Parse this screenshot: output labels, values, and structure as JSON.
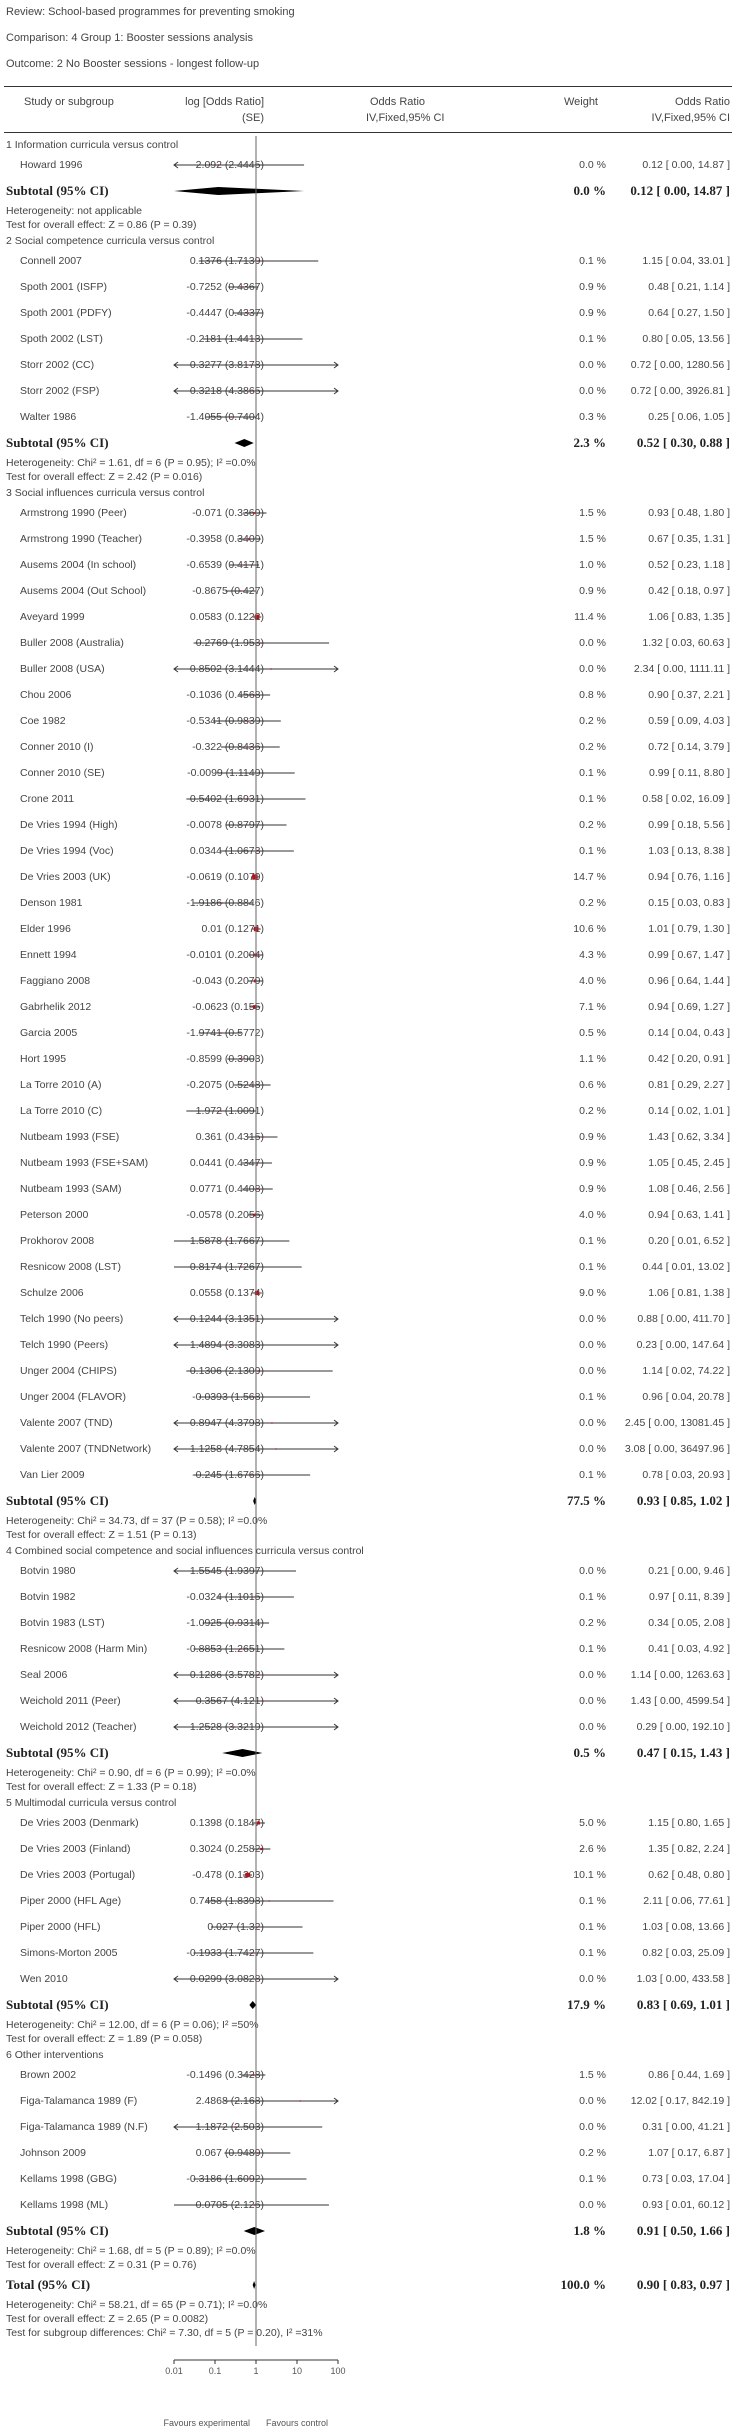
{
  "meta": {
    "review": "Review:    School-based programmes for preventing smoking",
    "comparison": "Comparison:    4 Group 1: Booster sessions analysis",
    "outcome": "Outcome:    2 No Booster sessions - longest follow-up"
  },
  "header": {
    "study": "Study or subgroup",
    "logor": "log [Odds Ratio]",
    "se": "(SE)",
    "or": "Odds Ratio",
    "or_method": "IV,Fixed,95% CI",
    "weight": "Weight",
    "or2": "Odds Ratio",
    "or2_method": "IV,Fixed,95% CI"
  },
  "colors": {
    "point": "#b5121b",
    "line": "#333333",
    "diamond": "#000000"
  },
  "chart_data": {
    "type": "forest",
    "x_scale": "log",
    "xlim": [
      0.01,
      100
    ],
    "ticks": [
      "0.01",
      "0.1",
      "1",
      "10",
      "100"
    ],
    "favours_left": "Favours experimental",
    "favours_right": "Favours control",
    "rows": [
      {
        "kind": "group",
        "label": "1 Information curricula versus control"
      },
      {
        "kind": "study",
        "label": "Howard 1996",
        "est": "-2.092 (2.4445)",
        "or": 0.12,
        "lo": 0.001,
        "hi": 14.87,
        "w": "0.0 %",
        "ci": "0.12 [ 0.00, 14.87 ]"
      },
      {
        "kind": "subtotal",
        "label": "Subtotal (95% CI)",
        "or": 0.12,
        "lo": 0.001,
        "hi": 14.87,
        "w": "0.0 %",
        "ci": "0.12 [ 0.00, 14.87 ]"
      },
      {
        "kind": "note",
        "label": "Heterogeneity: not applicable"
      },
      {
        "kind": "note",
        "label": "Test for overall effect: Z = 0.86 (P = 0.39)"
      },
      {
        "kind": "group",
        "label": "2 Social competence curricula versus control"
      },
      {
        "kind": "study",
        "label": "Connell 2007",
        "est": "0.1376 (1.7139)",
        "or": 1.15,
        "lo": 0.04,
        "hi": 33.01,
        "w": "0.1 %",
        "ci": "1.15 [ 0.04, 33.01 ]"
      },
      {
        "kind": "study",
        "label": "Spoth 2001 (ISFP)",
        "est": "-0.7252 (0.4367)",
        "or": 0.48,
        "lo": 0.21,
        "hi": 1.14,
        "w": "0.9 %",
        "ci": "0.48 [ 0.21, 1.14 ]"
      },
      {
        "kind": "study",
        "label": "Spoth 2001 (PDFY)",
        "est": "-0.4447 (0.4337)",
        "or": 0.64,
        "lo": 0.27,
        "hi": 1.5,
        "w": "0.9 %",
        "ci": "0.64 [ 0.27, 1.50 ]"
      },
      {
        "kind": "study",
        "label": "Spoth 2002 (LST)",
        "est": "-0.2181 (1.4413)",
        "or": 0.8,
        "lo": 0.05,
        "hi": 13.56,
        "w": "0.1 %",
        "ci": "0.80 [ 0.05, 13.56 ]"
      },
      {
        "kind": "study",
        "label": "Storr 2002 (CC)",
        "est": "-0.3277 (3.8178)",
        "or": 0.72,
        "lo": 0.001,
        "hi": 1280.56,
        "w": "0.0 %",
        "ci": "0.72 [ 0.00, 1280.56 ]"
      },
      {
        "kind": "study",
        "label": "Storr 2002 (FSP)",
        "est": "-0.3218 (4.3865)",
        "or": 0.72,
        "lo": 0.001,
        "hi": 3926.81,
        "w": "0.0 %",
        "ci": "0.72 [ 0.00, 3926.81 ]"
      },
      {
        "kind": "study",
        "label": "Walter 1986",
        "est": "-1.4055 (0.7404)",
        "or": 0.25,
        "lo": 0.06,
        "hi": 1.05,
        "w": "0.3 %",
        "ci": "0.25 [ 0.06, 1.05 ]"
      },
      {
        "kind": "subtotal",
        "label": "Subtotal (95% CI)",
        "or": 0.52,
        "lo": 0.3,
        "hi": 0.88,
        "w": "2.3 %",
        "ci": "0.52 [ 0.30, 0.88 ]"
      },
      {
        "kind": "note",
        "label": "Heterogeneity: Chi² = 1.61, df = 6 (P = 0.95); I² =0.0%"
      },
      {
        "kind": "note",
        "label": "Test for overall effect: Z = 2.42 (P = 0.016)"
      },
      {
        "kind": "group",
        "label": "3 Social influences curricula versus control"
      },
      {
        "kind": "study",
        "label": "Armstrong 1990 (Peer)",
        "est": "-0.071 (0.3369)",
        "or": 0.93,
        "lo": 0.48,
        "hi": 1.8,
        "w": "1.5 %",
        "ci": "0.93 [ 0.48, 1.80 ]"
      },
      {
        "kind": "study",
        "label": "Armstrong 1990 (Teacher)",
        "est": "-0.3958 (0.3409)",
        "or": 0.67,
        "lo": 0.35,
        "hi": 1.31,
        "w": "1.5 %",
        "ci": "0.67 [ 0.35, 1.31 ]"
      },
      {
        "kind": "study",
        "label": "Ausems 2004 (In school)",
        "est": "-0.6539 (0.4171)",
        "or": 0.52,
        "lo": 0.23,
        "hi": 1.18,
        "w": "1.0 %",
        "ci": "0.52 [ 0.23, 1.18 ]"
      },
      {
        "kind": "study",
        "label": "Ausems 2004 (Out School)",
        "est": "-0.8675 (0.427)",
        "or": 0.42,
        "lo": 0.18,
        "hi": 0.97,
        "w": "0.9 %",
        "ci": "0.42 [ 0.18, 0.97 ]"
      },
      {
        "kind": "study",
        "label": "Aveyard 1999",
        "est": "0.0583 (0.1222)",
        "or": 1.06,
        "lo": 0.83,
        "hi": 1.35,
        "w": "11.4 %",
        "ci": "1.06 [ 0.83, 1.35 ]"
      },
      {
        "kind": "study",
        "label": "Buller 2008 (Australia)",
        "est": "0.2769 (1.953)",
        "or": 1.32,
        "lo": 0.03,
        "hi": 60.63,
        "w": "0.0 %",
        "ci": "1.32 [ 0.03, 60.63 ]"
      },
      {
        "kind": "study",
        "label": "Buller 2008 (USA)",
        "est": "0.8502 (3.1444)",
        "or": 2.34,
        "lo": 0.001,
        "hi": 1111.11,
        "w": "0.0 %",
        "ci": "2.34 [ 0.00, 1111.11 ]"
      },
      {
        "kind": "study",
        "label": "Chou 2006",
        "est": "-0.1036 (0.4568)",
        "or": 0.9,
        "lo": 0.37,
        "hi": 2.21,
        "w": "0.8 %",
        "ci": "0.90 [ 0.37, 2.21 ]"
      },
      {
        "kind": "study",
        "label": "Coe 1982",
        "est": "-0.5341 (0.9839)",
        "or": 0.59,
        "lo": 0.09,
        "hi": 4.03,
        "w": "0.2 %",
        "ci": "0.59 [ 0.09, 4.03 ]"
      },
      {
        "kind": "study",
        "label": "Conner 2010 (I)",
        "est": "-0.322 (0.8436)",
        "or": 0.72,
        "lo": 0.14,
        "hi": 3.79,
        "w": "0.2 %",
        "ci": "0.72 [ 0.14, 3.79 ]"
      },
      {
        "kind": "study",
        "label": "Conner 2010 (SE)",
        "est": "-0.0099 (1.1149)",
        "or": 0.99,
        "lo": 0.11,
        "hi": 8.8,
        "w": "0.1 %",
        "ci": "0.99 [ 0.11, 8.80 ]"
      },
      {
        "kind": "study",
        "label": "Crone 2011",
        "est": "-0.5402 (1.6931)",
        "or": 0.58,
        "lo": 0.02,
        "hi": 16.09,
        "w": "0.1 %",
        "ci": "0.58 [ 0.02, 16.09 ]"
      },
      {
        "kind": "study",
        "label": "De Vries 1994 (High)",
        "est": "-0.0078 (0.8797)",
        "or": 0.99,
        "lo": 0.18,
        "hi": 5.56,
        "w": "0.2 %",
        "ci": "0.99 [ 0.18, 5.56 ]"
      },
      {
        "kind": "study",
        "label": "De Vries 1994 (Voc)",
        "est": "0.0344 (1.0673)",
        "or": 1.03,
        "lo": 0.13,
        "hi": 8.38,
        "w": "0.1 %",
        "ci": "1.03 [ 0.13, 8.38 ]"
      },
      {
        "kind": "study",
        "label": "De Vries 2003 (UK)",
        "est": "-0.0619 (0.1079)",
        "or": 0.94,
        "lo": 0.76,
        "hi": 1.16,
        "w": "14.7 %",
        "ci": "0.94 [ 0.76, 1.16 ]"
      },
      {
        "kind": "study",
        "label": "Denson 1981",
        "est": "-1.9186 (0.8846)",
        "or": 0.15,
        "lo": 0.03,
        "hi": 0.83,
        "w": "0.2 %",
        "ci": "0.15 [ 0.03, 0.83 ]"
      },
      {
        "kind": "study",
        "label": "Elder 1996",
        "est": "0.01 (0.1271)",
        "or": 1.01,
        "lo": 0.79,
        "hi": 1.3,
        "w": "10.6 %",
        "ci": "1.01 [ 0.79, 1.30 ]"
      },
      {
        "kind": "study",
        "label": "Ennett 1994",
        "est": "-0.0101 (0.2004)",
        "or": 0.99,
        "lo": 0.67,
        "hi": 1.47,
        "w": "4.3 %",
        "ci": "0.99 [ 0.67, 1.47 ]"
      },
      {
        "kind": "study",
        "label": "Faggiano 2008",
        "est": "-0.043 (0.2079)",
        "or": 0.96,
        "lo": 0.64,
        "hi": 1.44,
        "w": "4.0 %",
        "ci": "0.96 [ 0.64, 1.44 ]"
      },
      {
        "kind": "study",
        "label": "Gabrhelik 2012",
        "est": "-0.0623 (0.155)",
        "or": 0.94,
        "lo": 0.69,
        "hi": 1.27,
        "w": "7.1 %",
        "ci": "0.94 [ 0.69, 1.27 ]"
      },
      {
        "kind": "study",
        "label": "Garcia 2005",
        "est": "-1.9741 (0.5772)",
        "or": 0.14,
        "lo": 0.04,
        "hi": 0.43,
        "w": "0.5 %",
        "ci": "0.14 [ 0.04, 0.43 ]"
      },
      {
        "kind": "study",
        "label": "Hort 1995",
        "est": "-0.8599 (0.3903)",
        "or": 0.42,
        "lo": 0.2,
        "hi": 0.91,
        "w": "1.1 %",
        "ci": "0.42 [ 0.20, 0.91 ]"
      },
      {
        "kind": "study",
        "label": "La Torre 2010 (A)",
        "est": "-0.2075 (0.5248)",
        "or": 0.81,
        "lo": 0.29,
        "hi": 2.27,
        "w": "0.6 %",
        "ci": "0.81 [ 0.29, 2.27 ]"
      },
      {
        "kind": "study",
        "label": "La Torre 2010 (C)",
        "est": "-1.972 (1.0091)",
        "or": 0.14,
        "lo": 0.02,
        "hi": 1.01,
        "w": "0.2 %",
        "ci": "0.14 [ 0.02, 1.01 ]"
      },
      {
        "kind": "study",
        "label": "Nutbeam 1993 (FSE)",
        "est": "0.361 (0.4315)",
        "or": 1.43,
        "lo": 0.62,
        "hi": 3.34,
        "w": "0.9 %",
        "ci": "1.43 [ 0.62, 3.34 ]"
      },
      {
        "kind": "study",
        "label": "Nutbeam 1993 (FSE+SAM)",
        "est": "0.0441 (0.4347)",
        "or": 1.05,
        "lo": 0.45,
        "hi": 2.45,
        "w": "0.9 %",
        "ci": "1.05 [ 0.45, 2.45 ]"
      },
      {
        "kind": "study",
        "label": "Nutbeam 1993 (SAM)",
        "est": "0.0771 (0.4408)",
        "or": 1.08,
        "lo": 0.46,
        "hi": 2.56,
        "w": "0.9 %",
        "ci": "1.08 [ 0.46, 2.56 ]"
      },
      {
        "kind": "study",
        "label": "Peterson 2000",
        "est": "-0.0578 (0.2056)",
        "or": 0.94,
        "lo": 0.63,
        "hi": 1.41,
        "w": "4.0 %",
        "ci": "0.94 [ 0.63, 1.41 ]"
      },
      {
        "kind": "study",
        "label": "Prokhorov 2008",
        "est": "-1.5878 (1.7667)",
        "or": 0.2,
        "lo": 0.01,
        "hi": 6.52,
        "w": "0.1 %",
        "ci": "0.20 [ 0.01, 6.52 ]"
      },
      {
        "kind": "study",
        "label": "Resnicow 2008 (LST)",
        "est": "-0.8174 (1.7267)",
        "or": 0.44,
        "lo": 0.01,
        "hi": 13.02,
        "w": "0.1 %",
        "ci": "0.44 [ 0.01, 13.02 ]"
      },
      {
        "kind": "study",
        "label": "Schulze 2006",
        "est": "0.0558 (0.1374)",
        "or": 1.06,
        "lo": 0.81,
        "hi": 1.38,
        "w": "9.0 %",
        "ci": "1.06 [ 0.81, 1.38 ]"
      },
      {
        "kind": "study",
        "label": "Telch 1990 (No peers)",
        "est": "-0.1244 (3.1351)",
        "or": 0.88,
        "lo": 0.001,
        "hi": 411.7,
        "w": "0.0 %",
        "ci": "0.88 [ 0.00, 411.70 ]"
      },
      {
        "kind": "study",
        "label": "Telch 1990 (Peers)",
        "est": "-1.4894 (3.3083)",
        "or": 0.23,
        "lo": 0.001,
        "hi": 147.64,
        "w": "0.0 %",
        "ci": "0.23 [ 0.00, 147.64 ]"
      },
      {
        "kind": "study",
        "label": "Unger 2004 (CHIPS)",
        "est": "0.1306 (2.1309)",
        "or": 1.14,
        "lo": 0.02,
        "hi": 74.22,
        "w": "0.0 %",
        "ci": "1.14 [ 0.02, 74.22 ]"
      },
      {
        "kind": "study",
        "label": "Unger 2004 (FLAVOR)",
        "est": "-0.0393 (1.568)",
        "or": 0.96,
        "lo": 0.04,
        "hi": 20.78,
        "w": "0.1 %",
        "ci": "0.96 [ 0.04, 20.78 ]"
      },
      {
        "kind": "study",
        "label": "Valente 2007 (TND)",
        "est": "0.8947 (4.3798)",
        "or": 2.45,
        "lo": 0.001,
        "hi": 13081.45,
        "w": "0.0 %",
        "ci": "2.45 [ 0.00, 13081.45 ]"
      },
      {
        "kind": "study",
        "label": "Valente 2007 (TNDNetwork)",
        "est": "1.1258 (4.7854)",
        "or": 3.08,
        "lo": 0.001,
        "hi": 36497.96,
        "w": "0.0 %",
        "ci": "3.08 [ 0.00, 36497.96 ]"
      },
      {
        "kind": "study",
        "label": "Van Lier 2009",
        "est": "-0.245 (1.6766)",
        "or": 0.78,
        "lo": 0.03,
        "hi": 20.93,
        "w": "0.1 %",
        "ci": "0.78 [ 0.03, 20.93 ]"
      },
      {
        "kind": "subtotal",
        "label": "Subtotal (95% CI)",
        "or": 0.93,
        "lo": 0.85,
        "hi": 1.02,
        "w": "77.5 %",
        "ci": "0.93 [ 0.85, 1.02 ]"
      },
      {
        "kind": "note",
        "label": "Heterogeneity: Chi² = 34.73, df = 37 (P = 0.58); I² =0.0%"
      },
      {
        "kind": "note",
        "label": "Test for overall effect: Z = 1.51 (P = 0.13)"
      },
      {
        "kind": "group",
        "label": "4 Combined social competence and social influences curricula versus control"
      },
      {
        "kind": "study",
        "label": "Botvin 1980",
        "est": "-1.5545 (1.9397)",
        "or": 0.21,
        "lo": 0.001,
        "hi": 9.46,
        "w": "0.0 %",
        "ci": "0.21 [ 0.00, 9.46 ]"
      },
      {
        "kind": "study",
        "label": "Botvin 1982",
        "est": "-0.0324 (1.1015)",
        "or": 0.97,
        "lo": 0.11,
        "hi": 8.39,
        "w": "0.1 %",
        "ci": "0.97 [ 0.11, 8.39 ]"
      },
      {
        "kind": "study",
        "label": "Botvin 1983 (LST)",
        "est": "-1.0925 (0.9314)",
        "or": 0.34,
        "lo": 0.05,
        "hi": 2.08,
        "w": "0.2 %",
        "ci": "0.34 [ 0.05, 2.08 ]"
      },
      {
        "kind": "study",
        "label": "Resnicow 2008 (Harm Min)",
        "est": "-0.8853 (1.2651)",
        "or": 0.41,
        "lo": 0.03,
        "hi": 4.92,
        "w": "0.1 %",
        "ci": "0.41 [ 0.03, 4.92 ]"
      },
      {
        "kind": "study",
        "label": "Seal 2006",
        "est": "0.1286 (3.5782)",
        "or": 1.14,
        "lo": 0.001,
        "hi": 1263.63,
        "w": "0.0 %",
        "ci": "1.14 [ 0.00, 1263.63 ]"
      },
      {
        "kind": "study",
        "label": "Weichold 2011 (Peer)",
        "est": "0.3567 (4.121)",
        "or": 1.43,
        "lo": 0.001,
        "hi": 4599.54,
        "w": "0.0 %",
        "ci": "1.43 [ 0.00, 4599.54 ]"
      },
      {
        "kind": "study",
        "label": "Weichold 2012 (Teacher)",
        "est": "-1.2528 (3.3219)",
        "or": 0.29,
        "lo": 0.001,
        "hi": 192.1,
        "w": "0.0 %",
        "ci": "0.29 [ 0.00, 192.10 ]"
      },
      {
        "kind": "subtotal",
        "label": "Subtotal (95% CI)",
        "or": 0.47,
        "lo": 0.15,
        "hi": 1.43,
        "w": "0.5 %",
        "ci": "0.47 [ 0.15, 1.43 ]"
      },
      {
        "kind": "note",
        "label": "Heterogeneity: Chi² = 0.90, df = 6 (P = 0.99); I² =0.0%"
      },
      {
        "kind": "note",
        "label": "Test for overall effect: Z = 1.33 (P = 0.18)"
      },
      {
        "kind": "group",
        "label": "5 Multimodal curricula versus control"
      },
      {
        "kind": "study",
        "label": "De Vries 2003 (Denmark)",
        "est": "0.1398 (0.1847)",
        "or": 1.15,
        "lo": 0.8,
        "hi": 1.65,
        "w": "5.0 %",
        "ci": "1.15 [ 0.80, 1.65 ]"
      },
      {
        "kind": "study",
        "label": "De Vries 2003 (Finland)",
        "est": "0.3024 (0.2582)",
        "or": 1.35,
        "lo": 0.82,
        "hi": 2.24,
        "w": "2.6 %",
        "ci": "1.35 [ 0.82, 2.24 ]"
      },
      {
        "kind": "study",
        "label": "De Vries 2003 (Portugal)",
        "est": "-0.478 (0.1303)",
        "or": 0.62,
        "lo": 0.48,
        "hi": 0.8,
        "w": "10.1 %",
        "ci": "0.62 [ 0.48, 0.80 ]"
      },
      {
        "kind": "study",
        "label": "Piper 2000 (HFL Age)",
        "est": "0.7458 (1.8398)",
        "or": 2.11,
        "lo": 0.06,
        "hi": 77.61,
        "w": "0.1 %",
        "ci": "2.11 [ 0.06, 77.61 ]"
      },
      {
        "kind": "study",
        "label": "Piper 2000 (HFL)",
        "est": "0.027 (1.32)",
        "or": 1.03,
        "lo": 0.08,
        "hi": 13.66,
        "w": "0.1 %",
        "ci": "1.03 [ 0.08, 13.66 ]"
      },
      {
        "kind": "study",
        "label": "Simons-Morton 2005",
        "est": "-0.1933 (1.7427)",
        "or": 0.82,
        "lo": 0.03,
        "hi": 25.09,
        "w": "0.1 %",
        "ci": "0.82 [ 0.03, 25.09 ]"
      },
      {
        "kind": "study",
        "label": "Wen 2010",
        "est": "0.0299 (3.0828)",
        "or": 1.03,
        "lo": 0.001,
        "hi": 433.58,
        "w": "0.0 %",
        "ci": "1.03 [ 0.00, 433.58 ]"
      },
      {
        "kind": "subtotal",
        "label": "Subtotal (95% CI)",
        "or": 0.83,
        "lo": 0.69,
        "hi": 1.01,
        "w": "17.9 %",
        "ci": "0.83 [ 0.69, 1.01 ]"
      },
      {
        "kind": "note",
        "label": "Heterogeneity: Chi² = 12.00, df = 6 (P = 0.06); I² =50%"
      },
      {
        "kind": "note",
        "label": "Test for overall effect: Z = 1.89 (P = 0.058)"
      },
      {
        "kind": "group",
        "label": "6 Other interventions"
      },
      {
        "kind": "study",
        "label": "Brown 2002",
        "est": "-0.1496 (0.3428)",
        "or": 0.86,
        "lo": 0.44,
        "hi": 1.69,
        "w": "1.5 %",
        "ci": "0.86 [ 0.44, 1.69 ]"
      },
      {
        "kind": "study",
        "label": "Figa-Talamanca 1989 (F)",
        "est": "2.4868 (2.168)",
        "or": 12.02,
        "lo": 0.17,
        "hi": 842.19,
        "w": "0.0 %",
        "ci": "12.02 [ 0.17, 842.19 ]"
      },
      {
        "kind": "study",
        "label": "Figa-Talamanca 1989 (N.F)",
        "est": "-1.1872 (2.503)",
        "or": 0.31,
        "lo": 0.001,
        "hi": 41.21,
        "w": "0.0 %",
        "ci": "0.31 [ 0.00, 41.21 ]"
      },
      {
        "kind": "study",
        "label": "Johnson 2009",
        "est": "0.067 (0.9489)",
        "or": 1.07,
        "lo": 0.17,
        "hi": 6.87,
        "w": "0.2 %",
        "ci": "1.07 [ 0.17, 6.87 ]"
      },
      {
        "kind": "study",
        "label": "Kellams 1998 (GBG)",
        "est": "-0.3186 (1.6092)",
        "or": 0.73,
        "lo": 0.03,
        "hi": 17.04,
        "w": "0.1 %",
        "ci": "0.73 [ 0.03, 17.04 ]"
      },
      {
        "kind": "study",
        "label": "Kellams 1998 (ML)",
        "est": "-0.0705 (2.126)",
        "or": 0.93,
        "lo": 0.01,
        "hi": 60.12,
        "w": "0.0 %",
        "ci": "0.93 [ 0.01, 60.12 ]"
      },
      {
        "kind": "subtotal",
        "label": "Subtotal (95% CI)",
        "or": 0.91,
        "lo": 0.5,
        "hi": 1.66,
        "w": "1.8 %",
        "ci": "0.91 [ 0.50, 1.66 ]"
      },
      {
        "kind": "note",
        "label": "Heterogeneity: Chi² = 1.68, df = 5 (P = 0.89); I² =0.0%"
      },
      {
        "kind": "note",
        "label": "Test for overall effect: Z = 0.31 (P = 0.76)"
      },
      {
        "kind": "total",
        "label": "Total (95% CI)",
        "or": 0.9,
        "lo": 0.83,
        "hi": 0.97,
        "w": "100.0 %",
        "ci": "0.90 [ 0.83, 0.97 ]"
      },
      {
        "kind": "note",
        "label": "Heterogeneity: Chi² = 58.21, df = 65 (P = 0.71); I² =0.0%"
      },
      {
        "kind": "note",
        "label": "Test for overall effect: Z = 2.65 (P = 0.0082)"
      },
      {
        "kind": "note",
        "label": "Test for subgroup differences: Chi² = 7.30, df = 5 (P = 0.20), I² =31%"
      }
    ]
  }
}
